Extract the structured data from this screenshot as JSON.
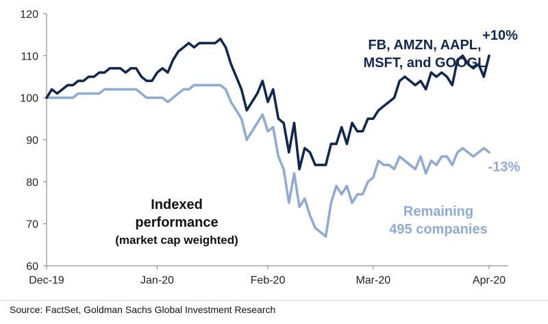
{
  "chart_data": {
    "type": "line",
    "ylim": [
      60,
      120
    ],
    "yticks": [
      60,
      70,
      80,
      90,
      100,
      110,
      120
    ],
    "xticks": [
      {
        "label": "Dec-19",
        "t": 0
      },
      {
        "label": "Jan-20",
        "t": 21
      },
      {
        "label": "Feb-20",
        "t": 42
      },
      {
        "label": "Mar-20",
        "t": 62
      },
      {
        "label": "Apr-20",
        "t": 84
      }
    ],
    "xlim": [
      0,
      88
    ],
    "series": [
      {
        "name": "FB, AMZN, AAPL, MSFT, and GOOGL",
        "color": "#10284e",
        "t": [
          0,
          1,
          2,
          3,
          4,
          5,
          6,
          7,
          8,
          9,
          10,
          11,
          12,
          13,
          14,
          15,
          16,
          17,
          18,
          19,
          20,
          21,
          22,
          23,
          24,
          25,
          26,
          27,
          28,
          29,
          30,
          31,
          32,
          33,
          34,
          35,
          36,
          37,
          38,
          39,
          40,
          41,
          42,
          43,
          44,
          45,
          46,
          47,
          48,
          49,
          50,
          51,
          52,
          53,
          54,
          55,
          56,
          57,
          58,
          59,
          60,
          61,
          62,
          63,
          64,
          65,
          66,
          67,
          68,
          69,
          70,
          71,
          72,
          73,
          74,
          75,
          76,
          77,
          78,
          79,
          80,
          81,
          82,
          83,
          84
        ],
        "values": [
          100,
          102,
          101,
          102,
          103,
          103,
          104,
          104,
          105,
          105,
          106,
          106,
          107,
          107,
          107,
          106,
          107,
          107,
          105,
          104,
          104,
          106,
          107,
          106,
          109,
          111,
          112,
          113,
          112,
          113,
          113,
          113,
          113,
          114,
          112,
          108,
          105,
          102,
          97,
          99,
          101,
          104,
          99,
          102,
          95,
          94,
          87,
          94,
          83,
          88,
          87,
          84,
          84,
          84,
          89,
          89,
          93,
          89,
          94,
          92,
          92,
          95,
          95,
          97,
          98,
          99,
          100,
          104,
          105,
          104,
          103,
          104,
          102,
          106,
          105,
          106,
          105,
          103,
          109,
          110,
          108,
          107,
          108,
          105,
          110
        ],
        "end_label": "+10%"
      },
      {
        "name": "Remaining 495 companies",
        "color": "#8eabd3",
        "t": [
          0,
          1,
          2,
          3,
          4,
          5,
          6,
          7,
          8,
          9,
          10,
          11,
          12,
          13,
          14,
          15,
          16,
          17,
          18,
          19,
          20,
          21,
          22,
          23,
          24,
          25,
          26,
          27,
          28,
          29,
          30,
          31,
          32,
          33,
          34,
          35,
          36,
          37,
          38,
          39,
          40,
          41,
          42,
          43,
          44,
          45,
          46,
          47,
          48,
          49,
          50,
          51,
          52,
          53,
          54,
          55,
          56,
          57,
          58,
          59,
          60,
          61,
          62,
          63,
          64,
          65,
          66,
          67,
          68,
          69,
          70,
          71,
          72,
          73,
          74,
          75,
          76,
          77,
          78,
          79,
          80,
          81,
          82,
          83,
          84
        ],
        "values": [
          100,
          100,
          100,
          100,
          100,
          100,
          101,
          101,
          101,
          101,
          101,
          102,
          102,
          102,
          102,
          102,
          102,
          102,
          101,
          100,
          100,
          100,
          100,
          99,
          100,
          101,
          102,
          102,
          103,
          103,
          103,
          103,
          103,
          103,
          102,
          99,
          97,
          95,
          90,
          92,
          94,
          96,
          92,
          93,
          86,
          83,
          75,
          82,
          74,
          76,
          72,
          69,
          68,
          67,
          75,
          79,
          77,
          79,
          75,
          77,
          77,
          80,
          81,
          85,
          84,
          84,
          83,
          86,
          85,
          84,
          83,
          86,
          82,
          85,
          84,
          86,
          86,
          84,
          87,
          88,
          87,
          86,
          87,
          88,
          87
        ],
        "end_label": "-13%"
      }
    ],
    "annotations": {
      "dark_label_lines": [
        "FB, AMZN, AAPL,",
        "MSFT, and GOOGL"
      ],
      "light_label_lines": [
        "Remaining",
        "495 companies"
      ],
      "panel_title_lines": [
        "Indexed",
        "performance",
        "(market cap weighted)"
      ]
    }
  },
  "source": "Source: FactSet, Goldman Sachs Global Investment Research"
}
